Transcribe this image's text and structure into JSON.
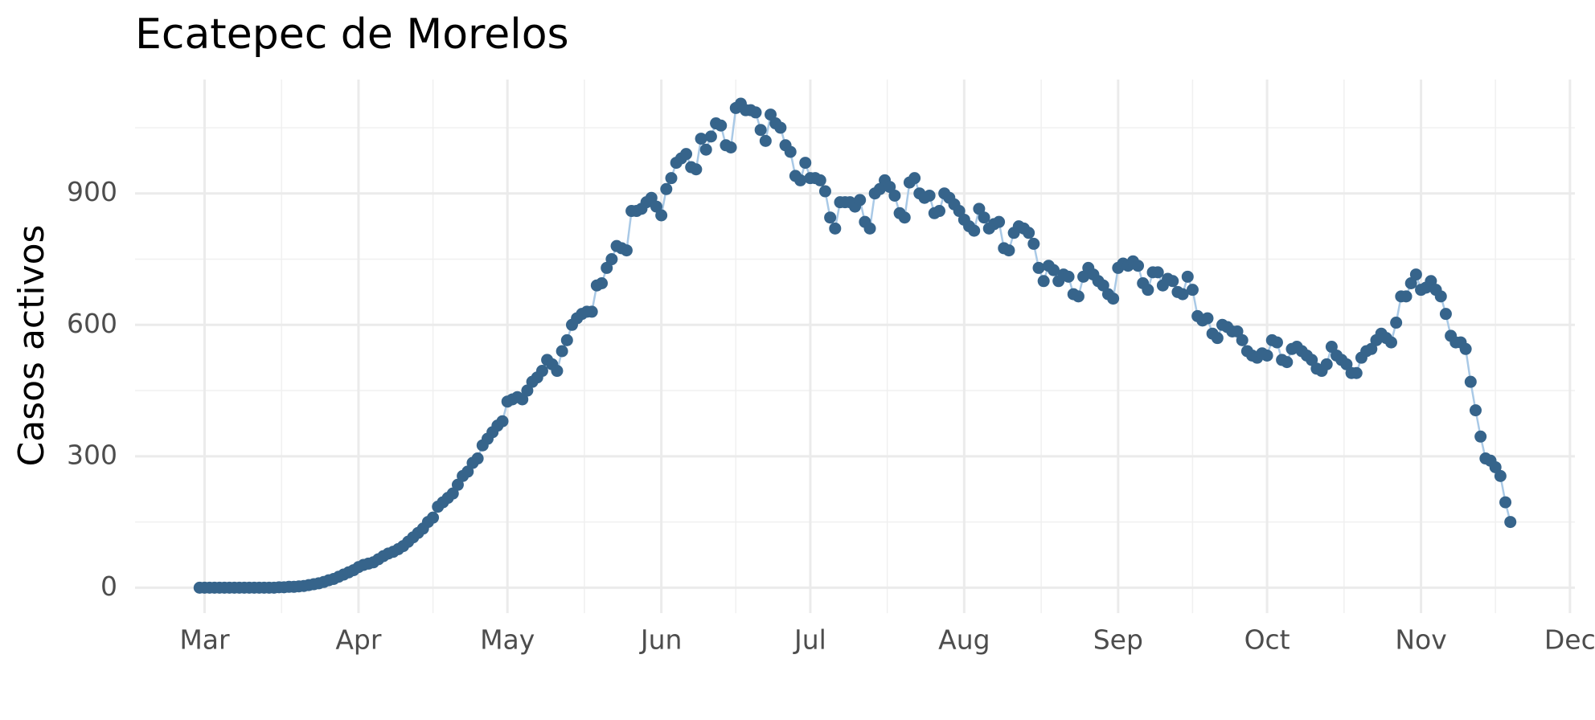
{
  "chart_data": {
    "type": "line",
    "title": "Ecatepec de Morelos",
    "y_label": "Casos activos",
    "x": [
      -1,
      0,
      1,
      2,
      3,
      4,
      5,
      6,
      7,
      8,
      9,
      10,
      11,
      12,
      13,
      14,
      15,
      16,
      17,
      18,
      19,
      20,
      21,
      22,
      23,
      24,
      25,
      26,
      27,
      28,
      29,
      30,
      31,
      32,
      33,
      34,
      35,
      36,
      37,
      38,
      39,
      40,
      41,
      42,
      43,
      44,
      45,
      46,
      47,
      48,
      49,
      50,
      51,
      52,
      53,
      54,
      55,
      56,
      57,
      58,
      59,
      60,
      61,
      62,
      63,
      64,
      65,
      66,
      67,
      68,
      69,
      70,
      71,
      72,
      73,
      74,
      75,
      76,
      77,
      78,
      79,
      80,
      81,
      82,
      83,
      84,
      85,
      86,
      87,
      88,
      89,
      90,
      91,
      92,
      93,
      94,
      95,
      96,
      97,
      98,
      99,
      100,
      101,
      102,
      103,
      104,
      105,
      106,
      107,
      108,
      109,
      110,
      111,
      112,
      113,
      114,
      115,
      116,
      117,
      118,
      119,
      120,
      121,
      122,
      123,
      124,
      125,
      126,
      127,
      128,
      129,
      130,
      131,
      132,
      133,
      134,
      135,
      136,
      137,
      138,
      139,
      140,
      141,
      142,
      143,
      144,
      145,
      146,
      147,
      148,
      149,
      150,
      151,
      152,
      153,
      154,
      155,
      156,
      157,
      158,
      159,
      160,
      161,
      162,
      163,
      164,
      165,
      166,
      167,
      168,
      169,
      170,
      171,
      172,
      173,
      174,
      175,
      176,
      177,
      178,
      179,
      180,
      181,
      182,
      183,
      184,
      185,
      186,
      187,
      188,
      189,
      190,
      191,
      192,
      193,
      194,
      195,
      196,
      197,
      198,
      199,
      200,
      201,
      202,
      203,
      204,
      205,
      206,
      207,
      208,
      209,
      210,
      211,
      212,
      213,
      214,
      215,
      216,
      217,
      218,
      219,
      220,
      221,
      222,
      223,
      224,
      225,
      226,
      227,
      228,
      229,
      230,
      231,
      232,
      233,
      234,
      235,
      236,
      237,
      238,
      239,
      240,
      241,
      242,
      243,
      244,
      245,
      246,
      247,
      248,
      249,
      250,
      251,
      252,
      253,
      254,
      255,
      256,
      257,
      258,
      259,
      260,
      261,
      262,
      263
    ],
    "values": [
      0,
      0,
      0,
      0,
      0,
      0,
      0,
      0,
      0,
      0,
      0,
      0,
      0,
      0,
      0,
      0,
      1,
      1,
      2,
      2,
      3,
      4,
      6,
      8,
      10,
      13,
      17,
      20,
      25,
      30,
      35,
      40,
      47,
      52,
      55,
      58,
      65,
      72,
      78,
      82,
      88,
      95,
      105,
      115,
      125,
      135,
      150,
      160,
      185,
      195,
      205,
      215,
      235,
      255,
      265,
      285,
      295,
      325,
      340,
      355,
      370,
      380,
      425,
      430,
      435,
      430,
      450,
      470,
      480,
      495,
      520,
      510,
      495,
      540,
      565,
      600,
      615,
      625,
      630,
      630,
      690,
      695,
      730,
      750,
      780,
      775,
      770,
      860,
      860,
      865,
      880,
      890,
      870,
      850,
      910,
      935,
      970,
      980,
      990,
      960,
      955,
      1025,
      1000,
      1030,
      1060,
      1055,
      1010,
      1005,
      1095,
      1105,
      1090,
      1090,
      1085,
      1045,
      1020,
      1080,
      1060,
      1050,
      1010,
      995,
      940,
      930,
      970,
      935,
      935,
      930,
      905,
      845,
      820,
      880,
      880,
      880,
      870,
      885,
      835,
      820,
      900,
      910,
      930,
      915,
      895,
      855,
      845,
      925,
      935,
      900,
      890,
      895,
      855,
      860,
      900,
      890,
      875,
      860,
      840,
      825,
      815,
      865,
      845,
      820,
      830,
      835,
      775,
      770,
      810,
      825,
      820,
      810,
      785,
      730,
      700,
      735,
      725,
      700,
      715,
      710,
      670,
      665,
      710,
      730,
      715,
      700,
      690,
      670,
      660,
      730,
      740,
      735,
      745,
      735,
      695,
      680,
      720,
      720,
      690,
      705,
      700,
      675,
      670,
      710,
      680,
      620,
      610,
      615,
      580,
      570,
      600,
      595,
      585,
      585,
      565,
      540,
      530,
      525,
      535,
      530,
      565,
      560,
      520,
      515,
      545,
      550,
      540,
      530,
      520,
      500,
      495,
      510,
      550,
      530,
      520,
      510,
      490,
      490,
      525,
      540,
      545,
      565,
      580,
      570,
      560,
      605,
      665,
      665,
      695,
      715,
      680,
      685,
      700,
      680,
      665,
      625,
      575,
      560,
      560,
      545,
      470,
      405,
      345,
      295,
      290,
      275,
      255,
      195,
      150
    ],
    "xlim": [
      -14,
      276
    ],
    "ylim": [
      -58,
      1160
    ],
    "xticks": [
      {
        "value": 0,
        "label": "Mar"
      },
      {
        "value": 31,
        "label": "Apr"
      },
      {
        "value": 61,
        "label": "May"
      },
      {
        "value": 92,
        "label": "Jun"
      },
      {
        "value": 122,
        "label": "Jul"
      },
      {
        "value": 153,
        "label": "Aug"
      },
      {
        "value": 184,
        "label": "Sep"
      },
      {
        "value": 214,
        "label": "Oct"
      },
      {
        "value": 245,
        "label": "Nov"
      },
      {
        "value": 275,
        "label": "Dec"
      }
    ],
    "yticks": [
      0,
      300,
      600,
      900
    ],
    "grid": true,
    "color": "#36648b",
    "line_color": "#a9c9e6"
  }
}
